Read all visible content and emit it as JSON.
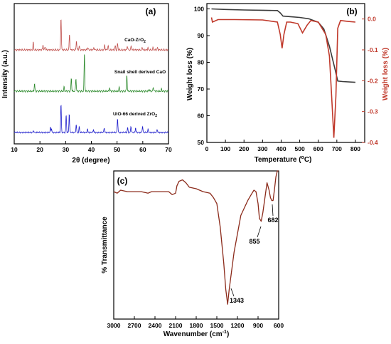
{
  "colors": {
    "xrd_cao_zro2": "#c0504d",
    "xrd_snail_cao": "#2e8b2e",
    "xrd_uio66_zro2": "#1f1fcc",
    "tga_weight": "#3a3a3a",
    "dtg_rate": "#c0392b",
    "ftir": "#8b2a1a"
  },
  "chart_data": [
    {
      "type": "line",
      "panel": "(a)",
      "xlabel": "2θ (degree)",
      "ylabel": "Intensity (a.u.)",
      "xlim": [
        10,
        70
      ],
      "x_ticks": [
        10,
        20,
        30,
        40,
        50,
        60,
        70
      ],
      "series": [
        {
          "name": "CaO-ZrO2",
          "label_text": "CaO-ZrO",
          "label_sub": "2",
          "baseline": 0.0,
          "peaks": [
            [
              17.4,
              0.18
            ],
            [
              21.2,
              0.12
            ],
            [
              22.0,
              0.08
            ],
            [
              28.2,
              0.8
            ],
            [
              31.5,
              0.4
            ],
            [
              34.2,
              0.22
            ],
            [
              35.3,
              0.1
            ],
            [
              38.6,
              0.06
            ],
            [
              41.0,
              0.06
            ],
            [
              45.2,
              0.12
            ],
            [
              46.5,
              0.1
            ],
            [
              49.3,
              0.1
            ],
            [
              50.2,
              0.15
            ],
            [
              54.0,
              0.1
            ],
            [
              55.5,
              0.1
            ],
            [
              59.8,
              0.06
            ],
            [
              62.0,
              0.05
            ],
            [
              64.0,
              0.05
            ],
            [
              65.7,
              0.05
            ]
          ]
        },
        {
          "name": "Snail shell derived CaO",
          "label_text": "Snail shell derived CaO",
          "label_sub": "",
          "baseline": 0.0,
          "peaks": [
            [
              17.9,
              0.18
            ],
            [
              29.4,
              0.1
            ],
            [
              32.2,
              0.32
            ],
            [
              34.0,
              0.32
            ],
            [
              37.3,
              0.95
            ],
            [
              47.1,
              0.08
            ],
            [
              50.8,
              0.1
            ],
            [
              53.8,
              0.4
            ],
            [
              62.5,
              0.05
            ],
            [
              64.1,
              0.1
            ],
            [
              67.3,
              0.05
            ]
          ]
        },
        {
          "name": "UiO-66 derived ZrO2",
          "label_text": "UiO-66 derived ZrO",
          "label_sub": "2",
          "baseline": 0.0,
          "peaks": [
            [
              17.5,
              0.06
            ],
            [
              24.1,
              0.15
            ],
            [
              24.5,
              0.12
            ],
            [
              28.2,
              0.9
            ],
            [
              30.2,
              0.55
            ],
            [
              31.4,
              0.6
            ],
            [
              34.1,
              0.25
            ],
            [
              35.3,
              0.18
            ],
            [
              38.5,
              0.1
            ],
            [
              40.8,
              0.1
            ],
            [
              45.0,
              0.15
            ],
            [
              50.2,
              0.45
            ],
            [
              54.1,
              0.15
            ],
            [
              55.4,
              0.2
            ],
            [
              57.2,
              0.15
            ],
            [
              59.9,
              0.2
            ],
            [
              62.1,
              0.1
            ],
            [
              65.6,
              0.1
            ]
          ]
        }
      ],
      "annotations": [
        "(a)"
      ]
    },
    {
      "type": "line",
      "panel": "(b)",
      "xlabel": "Temperature (°C)",
      "ylabel_left": "Weight loss (%)",
      "ylabel_right": "Weight loss (%)",
      "xlim": [
        0,
        850
      ],
      "ylim_left": [
        50,
        102
      ],
      "ylim_right": [
        -0.4,
        0.05
      ],
      "x_ticks": [
        0,
        100,
        200,
        300,
        400,
        500,
        600,
        700,
        800
      ],
      "y_ticks_left": [
        50,
        60,
        70,
        80,
        90,
        100
      ],
      "y_ticks_right": [
        "0.0",
        "-0.1",
        "-0.2",
        "-0.3",
        "-0.4"
      ],
      "series": [
        {
          "name": "TGA",
          "axis": "left",
          "x": [
            25,
            100,
            200,
            300,
            380,
            395,
            410,
            450,
            500,
            550,
            600,
            630,
            660,
            690,
            705,
            730,
            800
          ],
          "y": [
            100,
            99.8,
            99.6,
            99.5,
            99.4,
            98.5,
            97.3,
            97.1,
            96.8,
            96.3,
            95.0,
            92.5,
            86.0,
            77.5,
            73.0,
            72.8,
            72.5
          ]
        },
        {
          "name": "DTG",
          "axis": "right",
          "x": [
            25,
            30,
            60,
            150,
            300,
            380,
            395,
            405,
            415,
            430,
            450,
            490,
            515,
            540,
            560,
            600,
            640,
            660,
            672,
            684,
            695,
            705,
            720,
            760,
            800
          ],
          "y": [
            0.005,
            -0.01,
            -0.002,
            -0.002,
            -0.003,
            -0.01,
            -0.05,
            -0.095,
            -0.05,
            -0.01,
            -0.01,
            -0.015,
            -0.045,
            -0.02,
            -0.005,
            -0.01,
            -0.05,
            -0.12,
            -0.25,
            -0.385,
            -0.25,
            -0.03,
            -0.005,
            -0.008,
            -0.01
          ]
        }
      ],
      "annotations": [
        "(b)"
      ]
    },
    {
      "type": "line",
      "panel": "(c)",
      "xlabel": "Wavenumber (cm⁻¹)",
      "ylabel": "% Transmittance",
      "xlim": [
        3000,
        600
      ],
      "x_ticks": [
        3000,
        2700,
        2400,
        2100,
        1800,
        1500,
        1200,
        900,
        600
      ],
      "series": [
        {
          "name": "FTIR",
          "x": [
            3000,
            2950,
            2900,
            2800,
            2700,
            2600,
            2500,
            2450,
            2400,
            2300,
            2200,
            2150,
            2100,
            2080,
            2050,
            2000,
            1950,
            1900,
            1800,
            1700,
            1600,
            1550,
            1500,
            1450,
            1400,
            1370,
            1343,
            1320,
            1250,
            1150,
            1050,
            1000,
            960,
            930,
            900,
            880,
            855,
            830,
            800,
            770,
            740,
            720,
            700,
            682,
            660,
            640,
            620,
            605
          ],
          "y": [
            0.86,
            0.85,
            0.87,
            0.86,
            0.86,
            0.86,
            0.85,
            0.86,
            0.86,
            0.86,
            0.86,
            0.84,
            0.85,
            0.9,
            0.93,
            0.94,
            0.92,
            0.89,
            0.88,
            0.86,
            0.85,
            0.82,
            0.78,
            0.62,
            0.38,
            0.2,
            0.1,
            0.2,
            0.45,
            0.7,
            0.8,
            0.84,
            0.87,
            0.86,
            0.78,
            0.68,
            0.66,
            0.72,
            0.82,
            0.92,
            0.87,
            0.82,
            0.8,
            0.8,
            0.88,
            0.96,
            1.02,
            1.08
          ]
        }
      ],
      "peak_labels": [
        "1343",
        "855",
        "682"
      ],
      "annotations": [
        "(c)"
      ]
    }
  ],
  "labels": {
    "panel_a": "(a)",
    "panel_b": "(b)",
    "panel_c": "(c)",
    "a_xlabel": "2θ (degree)",
    "a_ylabel": "Intensity (a.u.)",
    "b_xlabel_pre": "Temperature (",
    "b_xlabel_sup": "o",
    "b_xlabel_post": "C)",
    "b_ylabel_left": "Weight loss (%)",
    "b_ylabel_right": "Weight loss (%)",
    "c_xlabel_pre": "Wavenumber (cm",
    "c_xlabel_sup": "-1",
    "c_xlabel_post": ")",
    "c_ylabel": "% Transmittance",
    "s1_text": "CaO-ZrO",
    "s1_sub": "2",
    "s2_text": "Snail shell derived CaO",
    "s3_text": "UiO-66 derived ZrO",
    "s3_sub": "2",
    "peak_1343": "1343",
    "peak_855": "855",
    "peak_682": "682"
  }
}
